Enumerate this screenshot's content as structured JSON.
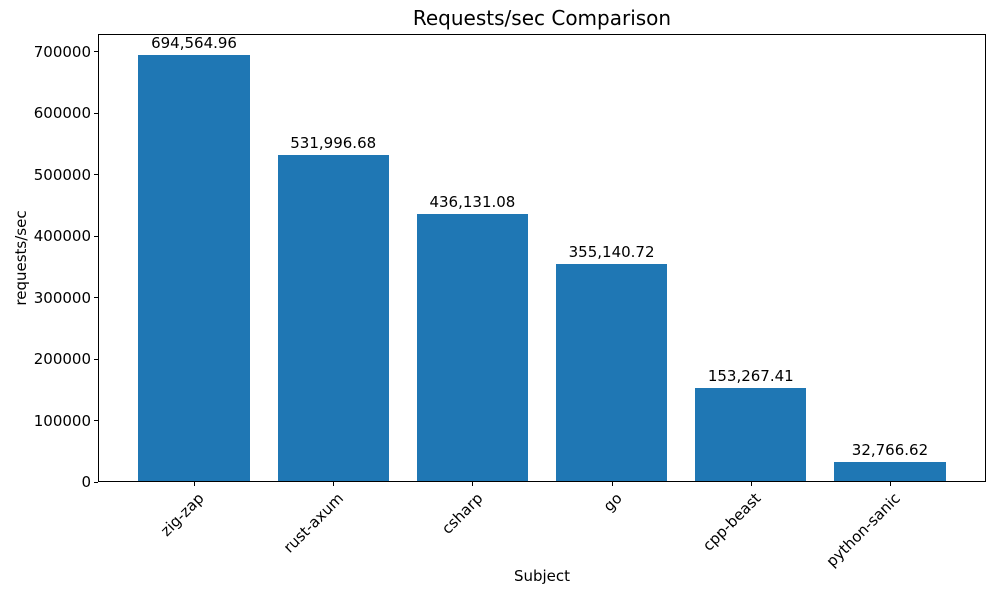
{
  "chart_data": {
    "type": "bar",
    "title": "Requests/sec Comparison",
    "xlabel": "Subject",
    "ylabel": "requests/sec",
    "categories": [
      "zig-zap",
      "rust-axum",
      "csharp",
      "go",
      "cpp-beast",
      "python-sanic"
    ],
    "values": [
      694564.96,
      531996.68,
      436131.08,
      355140.72,
      153267.41,
      32766.62
    ],
    "bar_labels": [
      "694,564.96",
      "531,996.68",
      "436,131.08",
      "355,140.72",
      "153,267.41",
      "32,766.62"
    ],
    "yticks": [
      0,
      100000,
      200000,
      300000,
      400000,
      500000,
      600000,
      700000
    ],
    "ytick_labels": [
      "0",
      "100000",
      "200000",
      "300000",
      "400000",
      "500000",
      "600000",
      "700000"
    ],
    "ylim": [
      0,
      729293
    ],
    "grid": false,
    "legend": null,
    "bar_color": "#1f77b4",
    "axis_color": "#000000",
    "text_color": "#000000",
    "background_color": "#ffffff",
    "xtick_rotation_deg": 45
  }
}
